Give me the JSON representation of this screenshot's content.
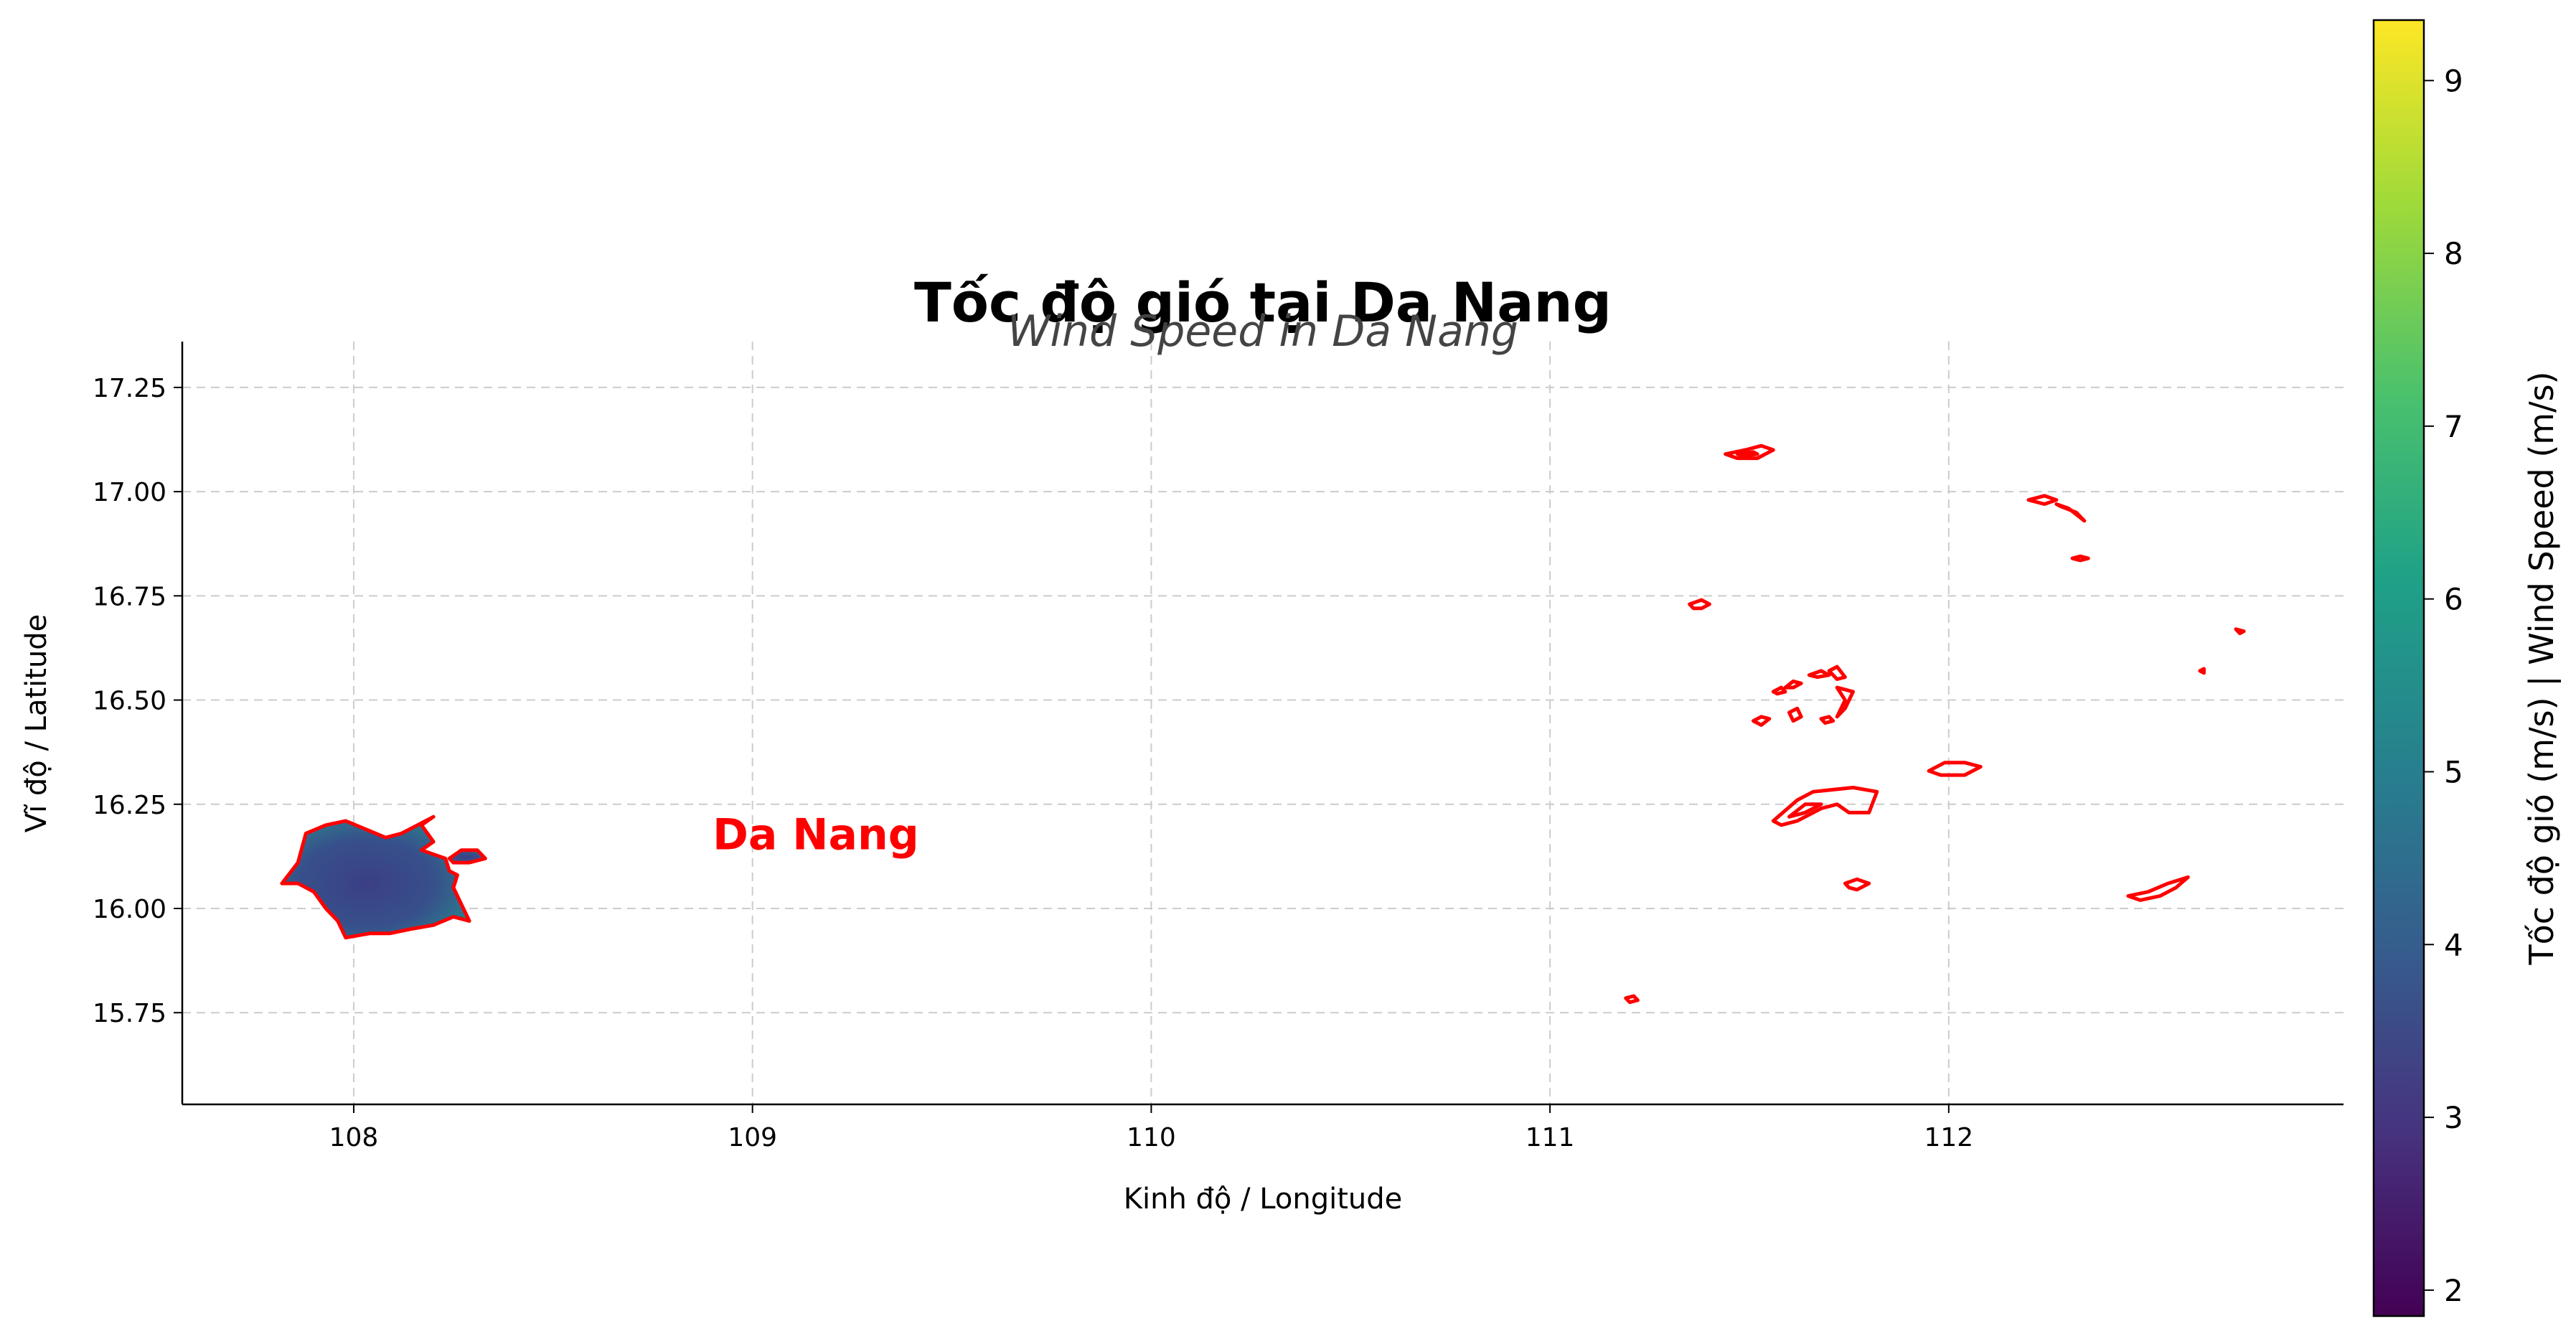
{
  "title": "Tốc độ gió tại Da Nang",
  "subtitle": "Wind Speed in Da Nang",
  "place_label": "Da Nang",
  "colors": {
    "boundary": "#ff0000",
    "label": "#ff0000",
    "grid": "#cccccc",
    "axis": "#000000"
  },
  "chart_data": {
    "type": "heatmap",
    "xlabel": "Kinh độ / Longitude",
    "ylabel": "Vĩ độ / Latitude",
    "xlim": [
      107.57,
      112.99
    ],
    "ylim": [
      15.53,
      17.36
    ],
    "xticks": [
      108,
      109,
      110,
      111,
      112
    ],
    "xtick_labels": [
      "108",
      "109",
      "110",
      "111",
      "112"
    ],
    "yticks": [
      15.75,
      16.0,
      16.25,
      16.5,
      16.75,
      17.0,
      17.25
    ],
    "ytick_labels": [
      "15.75",
      "16.00",
      "16.25",
      "16.50",
      "16.75",
      "17.00",
      "17.25"
    ],
    "grid": true,
    "label_position": {
      "lon": 108.9,
      "lat": 16.18
    },
    "colorbar": {
      "label": "Tốc độ gió (m/s) | Wind Speed (m/s)",
      "colormap": "viridis",
      "range": [
        1.85,
        9.35
      ],
      "ticks": [
        2,
        3,
        4,
        5,
        6,
        7,
        8,
        9
      ],
      "tick_labels": [
        "2",
        "3",
        "4",
        "5",
        "6",
        "7",
        "8",
        "9"
      ]
    },
    "boundaries": [
      {
        "name": "mainland",
        "filled": true,
        "points": [
          [
            107.82,
            16.06
          ],
          [
            107.86,
            16.11
          ],
          [
            107.88,
            16.18
          ],
          [
            107.93,
            16.2
          ],
          [
            107.98,
            16.21
          ],
          [
            108.03,
            16.19
          ],
          [
            108.08,
            16.17
          ],
          [
            108.12,
            16.18
          ],
          [
            108.16,
            16.2
          ],
          [
            108.2,
            16.22
          ],
          [
            108.17,
            16.2
          ],
          [
            108.2,
            16.16
          ],
          [
            108.17,
            16.14
          ],
          [
            108.23,
            16.12
          ],
          [
            108.24,
            16.09
          ],
          [
            108.26,
            16.08
          ],
          [
            108.25,
            16.05
          ],
          [
            108.27,
            16.01
          ],
          [
            108.29,
            15.97
          ],
          [
            108.25,
            15.98
          ],
          [
            108.2,
            15.96
          ],
          [
            108.14,
            15.95
          ],
          [
            108.09,
            15.94
          ],
          [
            108.04,
            15.94
          ],
          [
            107.98,
            15.93
          ],
          [
            107.96,
            15.97
          ],
          [
            107.93,
            16.0
          ],
          [
            107.9,
            16.04
          ],
          [
            107.86,
            16.06
          ]
        ]
      },
      {
        "name": "son-tra-islet",
        "filled": true,
        "points": [
          [
            108.24,
            16.12
          ],
          [
            108.27,
            16.14
          ],
          [
            108.31,
            16.14
          ],
          [
            108.33,
            16.12
          ],
          [
            108.29,
            16.11
          ],
          [
            108.25,
            16.11
          ]
        ]
      },
      {
        "name": "island-01",
        "points": [
          [
            111.44,
            17.09
          ],
          [
            111.49,
            17.1
          ],
          [
            111.53,
            17.11
          ],
          [
            111.56,
            17.1
          ],
          [
            111.52,
            17.08
          ],
          [
            111.47,
            17.08
          ]
        ]
      },
      {
        "name": "island-02",
        "points": [
          [
            111.47,
            17.09
          ],
          [
            111.51,
            17.095
          ],
          [
            111.52,
            17.09
          ],
          [
            111.48,
            17.085
          ]
        ]
      },
      {
        "name": "island-03",
        "points": [
          [
            112.2,
            16.98
          ],
          [
            112.24,
            16.99
          ],
          [
            112.27,
            16.98
          ],
          [
            112.24,
            16.97
          ]
        ]
      },
      {
        "name": "island-04",
        "points": [
          [
            112.27,
            16.97
          ],
          [
            112.3,
            16.96
          ],
          [
            112.34,
            16.93
          ],
          [
            112.32,
            16.95
          ],
          [
            112.28,
            16.965
          ]
        ]
      },
      {
        "name": "island-05",
        "points": [
          [
            112.31,
            16.84
          ],
          [
            112.33,
            16.845
          ],
          [
            112.35,
            16.84
          ],
          [
            112.33,
            16.835
          ]
        ]
      },
      {
        "name": "island-06",
        "points": [
          [
            111.35,
            16.73
          ],
          [
            111.38,
            16.74
          ],
          [
            111.4,
            16.73
          ],
          [
            111.38,
            16.72
          ],
          [
            111.36,
            16.72
          ]
        ]
      },
      {
        "name": "island-07",
        "points": [
          [
            112.72,
            16.67
          ],
          [
            112.74,
            16.665
          ],
          [
            112.73,
            16.66
          ]
        ]
      },
      {
        "name": "island-08",
        "points": [
          [
            112.63,
            16.57
          ],
          [
            112.64,
            16.575
          ],
          [
            112.64,
            16.565
          ]
        ]
      },
      {
        "name": "island-09",
        "points": [
          [
            111.56,
            16.52
          ],
          [
            111.58,
            16.53
          ],
          [
            111.59,
            16.52
          ],
          [
            111.57,
            16.515
          ]
        ]
      },
      {
        "name": "island-10",
        "points": [
          [
            111.59,
            16.53
          ],
          [
            111.61,
            16.545
          ],
          [
            111.63,
            16.54
          ],
          [
            111.61,
            16.53
          ]
        ]
      },
      {
        "name": "island-11",
        "points": [
          [
            111.65,
            16.56
          ],
          [
            111.68,
            16.57
          ],
          [
            111.7,
            16.56
          ],
          [
            111.67,
            16.555
          ]
        ]
      },
      {
        "name": "island-12",
        "points": [
          [
            111.7,
            16.57
          ],
          [
            111.72,
            16.58
          ],
          [
            111.74,
            16.555
          ],
          [
            111.72,
            16.55
          ]
        ]
      },
      {
        "name": "island-13",
        "points": [
          [
            111.72,
            16.53
          ],
          [
            111.76,
            16.52
          ],
          [
            111.74,
            16.48
          ],
          [
            111.72,
            16.46
          ],
          [
            111.74,
            16.5
          ]
        ]
      },
      {
        "name": "island-14",
        "points": [
          [
            111.6,
            16.47
          ],
          [
            111.62,
            16.48
          ],
          [
            111.63,
            16.46
          ],
          [
            111.61,
            16.45
          ]
        ]
      },
      {
        "name": "island-15",
        "points": [
          [
            111.51,
            16.45
          ],
          [
            111.53,
            16.46
          ],
          [
            111.55,
            16.455
          ],
          [
            111.53,
            16.44
          ]
        ]
      },
      {
        "name": "island-16",
        "points": [
          [
            111.68,
            16.455
          ],
          [
            111.7,
            16.46
          ],
          [
            111.71,
            16.45
          ],
          [
            111.69,
            16.445
          ]
        ]
      },
      {
        "name": "island-17",
        "points": [
          [
            111.95,
            16.33
          ],
          [
            111.99,
            16.35
          ],
          [
            112.04,
            16.35
          ],
          [
            112.08,
            16.34
          ],
          [
            112.04,
            16.32
          ],
          [
            111.98,
            16.32
          ]
        ]
      },
      {
        "name": "island-18",
        "points": [
          [
            111.56,
            16.21
          ],
          [
            111.62,
            16.26
          ],
          [
            111.66,
            16.28
          ],
          [
            111.76,
            16.29
          ],
          [
            111.82,
            16.28
          ],
          [
            111.8,
            16.23
          ],
          [
            111.75,
            16.23
          ],
          [
            111.72,
            16.25
          ],
          [
            111.68,
            16.24
          ],
          [
            111.62,
            16.21
          ],
          [
            111.58,
            16.2
          ]
        ]
      },
      {
        "name": "island-19",
        "points": [
          [
            111.6,
            16.22
          ],
          [
            111.64,
            16.25
          ],
          [
            111.68,
            16.25
          ],
          [
            111.64,
            16.23
          ]
        ]
      },
      {
        "name": "island-20",
        "points": [
          [
            111.74,
            16.06
          ],
          [
            111.77,
            16.07
          ],
          [
            111.8,
            16.06
          ],
          [
            111.77,
            16.045
          ],
          [
            111.75,
            16.05
          ]
        ]
      },
      {
        "name": "island-21",
        "points": [
          [
            112.45,
            16.03
          ],
          [
            112.5,
            16.04
          ],
          [
            112.55,
            16.06
          ],
          [
            112.6,
            16.075
          ],
          [
            112.57,
            16.05
          ],
          [
            112.53,
            16.03
          ],
          [
            112.48,
            16.02
          ]
        ]
      },
      {
        "name": "island-22",
        "points": [
          [
            111.19,
            15.785
          ],
          [
            111.21,
            15.79
          ],
          [
            111.22,
            15.78
          ],
          [
            111.2,
            15.775
          ]
        ]
      }
    ]
  }
}
